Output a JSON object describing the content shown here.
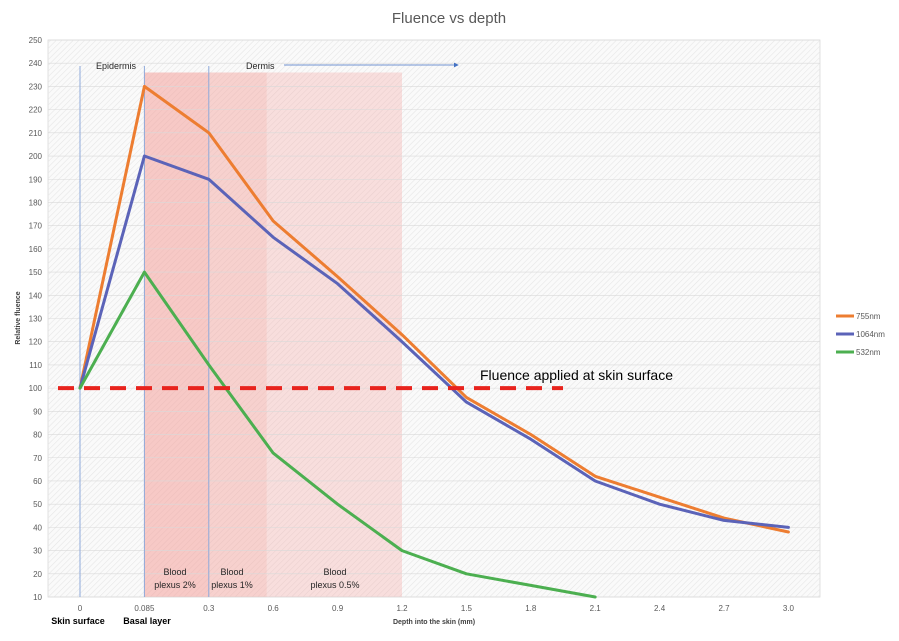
{
  "chart_data": {
    "type": "line",
    "title": "Fluence vs depth",
    "xlabel": "Depth into the skin (mm)",
    "ylabel": "Relative fluence",
    "x": [
      "0",
      "0.085",
      "0.3",
      "0.6",
      "0.9",
      "1.2",
      "1.5",
      "1.8",
      "2.1",
      "2.4",
      "2.7",
      "3.0"
    ],
    "ylim": [
      10,
      250
    ],
    "yticks": [
      10,
      20,
      30,
      40,
      50,
      60,
      70,
      80,
      90,
      100,
      110,
      120,
      130,
      140,
      150,
      160,
      170,
      180,
      190,
      200,
      210,
      220,
      230,
      240,
      250
    ],
    "grid": true,
    "legend_position": "right",
    "series": [
      {
        "name": "755nm",
        "color": "#ed7d31",
        "values": [
          100,
          230,
          210,
          172,
          148,
          123,
          96,
          80,
          62,
          53,
          44,
          38
        ]
      },
      {
        "name": "1064nm",
        "color": "#5b63b8",
        "values": [
          100,
          200,
          190,
          165,
          145,
          120,
          94,
          78,
          60,
          50,
          43,
          40
        ]
      },
      {
        "name": "532nm",
        "color": "#4caf50",
        "values": [
          100,
          150,
          110,
          72,
          50,
          30,
          20,
          15,
          10,
          null,
          null,
          null
        ]
      }
    ],
    "reference_line": {
      "label": "Fluence applied at skin surface",
      "value": 100,
      "color": "#e8231d"
    },
    "annotations": {
      "epidermis": "Epidermis",
      "dermis": "Dermis",
      "skin_surface": "Skin surface",
      "basal_layer": "Basal layer",
      "blood_2": [
        "Blood",
        "plexus 2%"
      ],
      "blood_1": [
        "Blood",
        "plexus 1%"
      ],
      "blood_05": [
        "Blood",
        "plexus 0.5%"
      ]
    },
    "region_color": "#f4a09a"
  }
}
